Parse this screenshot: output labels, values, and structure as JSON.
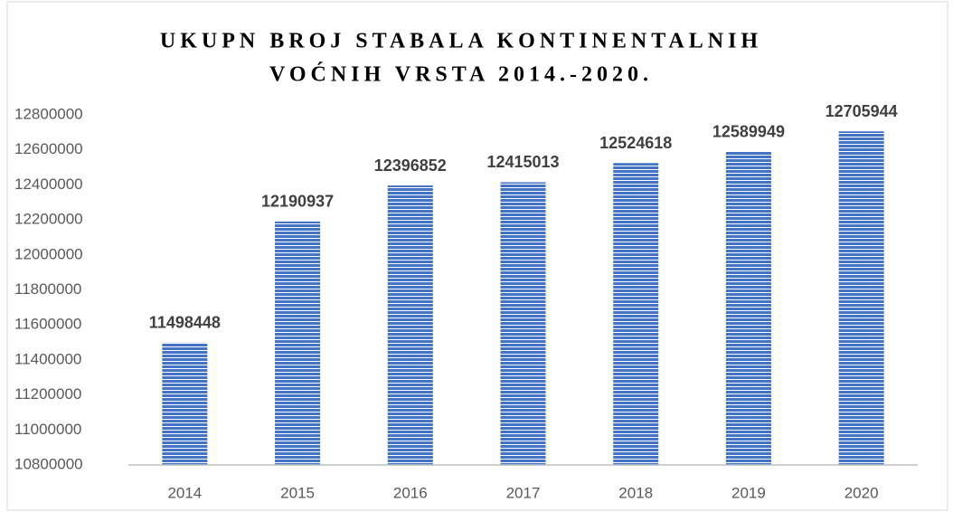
{
  "chart_data": {
    "type": "bar",
    "title": [
      "UKUPN BROJ STABALA KONTINENTALNIH",
      "VOĆNIH VRSTA 2014.-2020."
    ],
    "categories": [
      "2014",
      "2015",
      "2016",
      "2017",
      "2018",
      "2019",
      "2020"
    ],
    "values": [
      11498448,
      12190937,
      12396852,
      12415013,
      12524618,
      12589949,
      12705944
    ],
    "color": "#4472c4",
    "ylim": [
      10800000,
      12800000
    ],
    "yticks": [
      10800000,
      11000000,
      11200000,
      11400000,
      11600000,
      11800000,
      12000000,
      12200000,
      12400000,
      12600000,
      12800000
    ],
    "grid": false
  }
}
